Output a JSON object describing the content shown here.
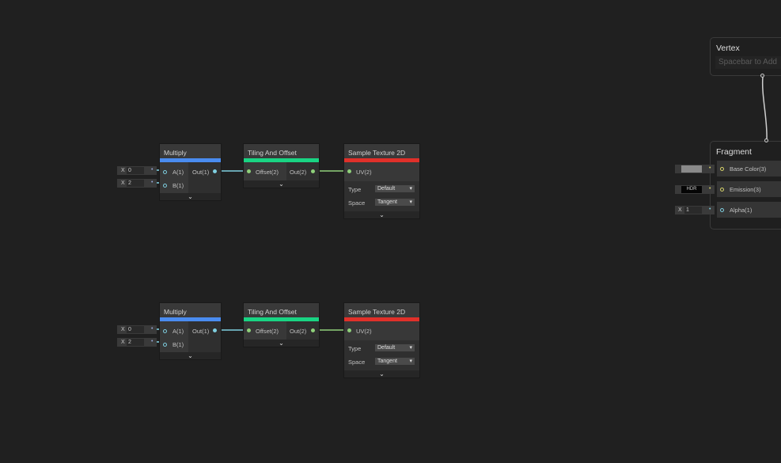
{
  "groups": [
    {
      "multiply": {
        "title": "Multiply",
        "inputs": [
          "A(1)",
          "B(1)"
        ],
        "output": "Out(1)",
        "values": [
          {
            "axis": "X",
            "value": "0"
          },
          {
            "axis": "X",
            "value": "2"
          }
        ]
      },
      "tiling": {
        "title": "Tiling And Offset",
        "input": "Offset(2)",
        "output": "Out(2)"
      },
      "sample": {
        "title": "Sample Texture 2D",
        "input": "UV(2)",
        "type_label": "Type",
        "type_value": "Default",
        "space_label": "Space",
        "space_value": "Tangent"
      }
    },
    {
      "multiply": {
        "title": "Multiply",
        "inputs": [
          "A(1)",
          "B(1)"
        ],
        "output": "Out(1)",
        "values": [
          {
            "axis": "X",
            "value": "0"
          },
          {
            "axis": "X",
            "value": "2"
          }
        ]
      },
      "tiling": {
        "title": "Tiling And Offset",
        "input": "Offset(2)",
        "output": "Out(2)"
      },
      "sample": {
        "title": "Sample Texture 2D",
        "input": "UV(2)",
        "type_label": "Type",
        "type_value": "Default",
        "space_label": "Space",
        "space_value": "Tangent"
      }
    }
  ],
  "vertex": {
    "title": "Vertex",
    "placeholder": "Spacebar to Add"
  },
  "fragment": {
    "title": "Fragment",
    "ports": [
      {
        "label": "Base Color(3)",
        "input": "#8a8a8a"
      },
      {
        "label": "Emission(3)",
        "input": "HDR"
      },
      {
        "label": "Alpha(1)",
        "axis": "X",
        "value": "1"
      }
    ]
  },
  "colors": {
    "multiply": "#4a8cf0",
    "tiling": "#19d483",
    "sample": "#e0302a",
    "float_wire": "#7fcfe0",
    "vec2_wire": "#8fd07a",
    "vec3_wire": "#d8d46a"
  }
}
